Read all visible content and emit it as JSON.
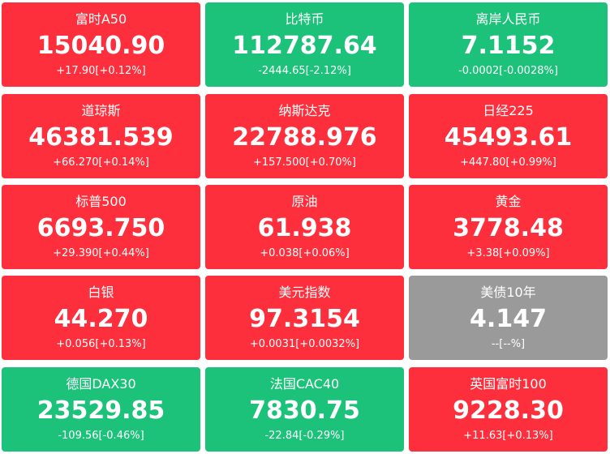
{
  "colors": {
    "up": "#fd2f3c",
    "down": "#1dc27a",
    "flat": "#9a9a9a"
  },
  "tiles": [
    {
      "name": "富时A50",
      "price": "15040.90",
      "change": "+17.90[+0.12%]",
      "trend": "up"
    },
    {
      "name": "比特币",
      "price": "112787.64",
      "change": "-2444.65[-2.12%]",
      "trend": "down"
    },
    {
      "name": "离岸人民币",
      "price": "7.1152",
      "change": "-0.0002[-0.0028%]",
      "trend": "down"
    },
    {
      "name": "道琼斯",
      "price": "46381.539",
      "change": "+66.270[+0.14%]",
      "trend": "up"
    },
    {
      "name": "纳斯达克",
      "price": "22788.976",
      "change": "+157.500[+0.70%]",
      "trend": "up"
    },
    {
      "name": "日经225",
      "price": "45493.61",
      "change": "+447.80[+0.99%]",
      "trend": "up"
    },
    {
      "name": "标普500",
      "price": "6693.750",
      "change": "+29.390[+0.44%]",
      "trend": "up"
    },
    {
      "name": "原油",
      "price": "61.938",
      "change": "+0.038[+0.06%]",
      "trend": "up"
    },
    {
      "name": "黄金",
      "price": "3778.48",
      "change": "+3.38[+0.09%]",
      "trend": "up"
    },
    {
      "name": "白银",
      "price": "44.270",
      "change": "+0.056[+0.13%]",
      "trend": "up"
    },
    {
      "name": "美元指数",
      "price": "97.3154",
      "change": "+0.0031[+0.0032%]",
      "trend": "up"
    },
    {
      "name": "美债10年",
      "price": "4.147",
      "change": "--[--%]",
      "trend": "flat"
    },
    {
      "name": "德国DAX30",
      "price": "23529.85",
      "change": "-109.56[-0.46%]",
      "trend": "down"
    },
    {
      "name": "法国CAC40",
      "price": "7830.75",
      "change": "-22.84[-0.29%]",
      "trend": "down"
    },
    {
      "name": "英国富时100",
      "price": "9228.30",
      "change": "+11.63[+0.13%]",
      "trend": "up"
    }
  ]
}
